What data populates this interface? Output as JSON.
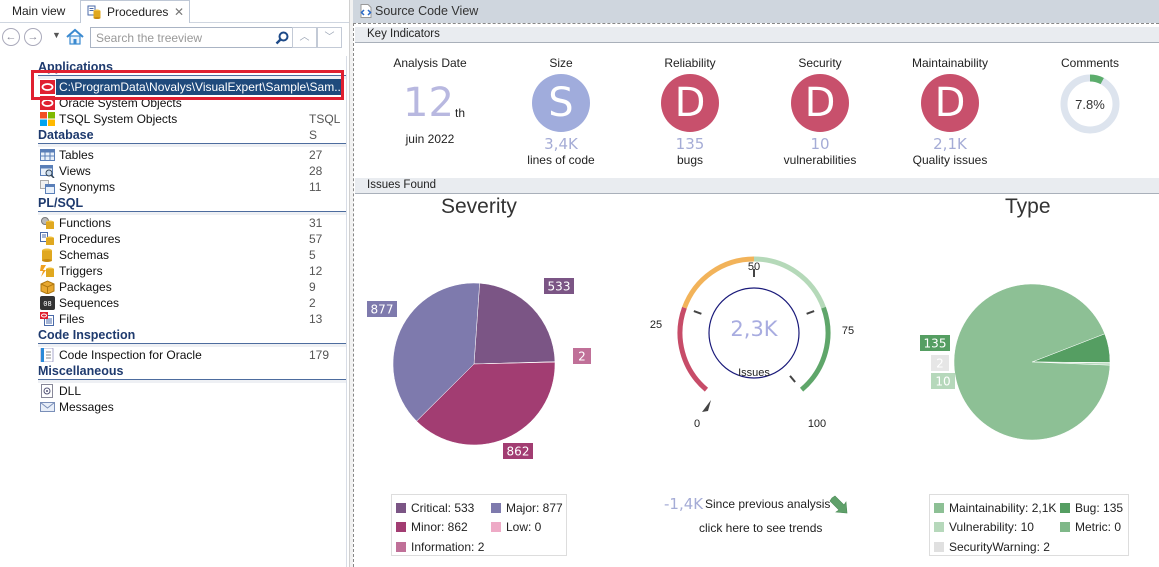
{
  "left_panel": {
    "tabs": [
      {
        "label": "Main view"
      },
      {
        "label": "Procedures",
        "close": "✕"
      }
    ],
    "toolbar": {
      "back": "←",
      "forward": "→",
      "dropdown": "▼",
      "search_placeholder": "Search the treeview",
      "up": "︿",
      "down": "﹀"
    },
    "tree": {
      "sections": [
        {
          "title": "Applications",
          "items": [
            {
              "label": "C:\\ProgramData\\Novalys\\VisualExpert\\Sample\\Sam...",
              "count": "",
              "icon": "oracle-icon",
              "selected": true
            },
            {
              "label": "Oracle System Objects",
              "count": "",
              "icon": "oracle-icon"
            },
            {
              "label": "TSQL System Objects",
              "count": "TSQL S",
              "icon": "windows-icon"
            }
          ]
        },
        {
          "title": "Database",
          "items": [
            {
              "label": "Tables",
              "count": "27",
              "icon": "table-icon"
            },
            {
              "label": "Views",
              "count": "28",
              "icon": "view-icon"
            },
            {
              "label": "Synonyms",
              "count": "11",
              "icon": "synonym-icon"
            }
          ]
        },
        {
          "title": "PL/SQL",
          "items": [
            {
              "label": "Functions",
              "count": "31",
              "icon": "function-icon"
            },
            {
              "label": "Procedures",
              "count": "57",
              "icon": "procedure-icon"
            },
            {
              "label": "Schemas",
              "count": "5",
              "icon": "schema-icon"
            },
            {
              "label": "Triggers",
              "count": "12",
              "icon": "trigger-icon"
            },
            {
              "label": "Packages",
              "count": "9",
              "icon": "package-icon"
            },
            {
              "label": "Sequences",
              "count": "2",
              "icon": "sequence-icon"
            },
            {
              "label": "Files",
              "count": "13",
              "icon": "file-icon"
            }
          ]
        },
        {
          "title": "Code Inspection",
          "items": [
            {
              "label": "Code Inspection for Oracle",
              "count": "179",
              "icon": "code-inspection-icon"
            }
          ]
        },
        {
          "title": "Miscellaneous",
          "items": [
            {
              "label": "DLL",
              "count": "",
              "icon": "dll-icon"
            },
            {
              "label": "Messages",
              "count": "",
              "icon": "message-icon"
            }
          ]
        }
      ]
    }
  },
  "right_panel": {
    "title": "Source Code View",
    "key_indicators": {
      "header": "Key Indicators",
      "analysis_date": {
        "title": "Analysis Date",
        "day": "12",
        "suffix": "th",
        "month_year": "juin 2022"
      },
      "size": {
        "title": "Size",
        "grade": "S",
        "value": "3,4K",
        "unit": "lines of code",
        "color": "#a0acdc"
      },
      "reliability": {
        "title": "Reliability",
        "grade": "D",
        "value": "135",
        "unit": "bugs",
        "color": "#c8506c"
      },
      "security": {
        "title": "Security",
        "grade": "D",
        "value": "10",
        "unit": "vulnerabilities",
        "color": "#c8506c"
      },
      "maintainability": {
        "title": "Maintainability",
        "grade": "D",
        "value": "2,1K",
        "unit": "Quality issues",
        "color": "#c8506c"
      },
      "comments": {
        "title": "Comments",
        "value": "7.8%",
        "percent": 7.8
      }
    },
    "issues": {
      "header": "Issues Found",
      "gauge": {
        "value": "2,3K",
        "label": "Issues",
        "ticks": [
          "0",
          "25",
          "50",
          "75",
          "100"
        ],
        "pointer_percent": 0
      },
      "trend": {
        "value": "-1,4K",
        "text": "Since previous analysis",
        "link": "click here to see trends"
      }
    }
  },
  "chart_data": [
    {
      "type": "pie",
      "title": "Severity",
      "categories": [
        "Critical",
        "Major",
        "Minor",
        "Low",
        "Information"
      ],
      "values": [
        533,
        877,
        862,
        0,
        2
      ],
      "slice_labels": [
        "533",
        "877",
        "862",
        "",
        "2"
      ],
      "colors": [
        "#7b5585",
        "#7e7aad",
        "#a23d72",
        "#eeaac6",
        "#c07098"
      ],
      "legend_labels": [
        "Critical:  533",
        "Major:  877",
        "Minor:  862",
        "Low:  0",
        "Information:  2"
      ],
      "legend": "bottom"
    },
    {
      "type": "pie",
      "title": "Type",
      "categories": [
        "Maintainability",
        "Bug",
        "Vulnerability",
        "Metric",
        "SecurityWarning"
      ],
      "values": [
        2100,
        135,
        10,
        0,
        2
      ],
      "slice_labels": [
        "2,1K",
        "135",
        "10",
        "",
        "2"
      ],
      "colors": [
        "#8dc095",
        "#559e62",
        "#b6d8bb",
        "#7fb889",
        "#e0e0e0"
      ],
      "legend_labels": [
        "Maintainability:  2,1K",
        "Bug:  135",
        "Vulnerability:  10",
        "Metric:  0",
        "SecurityWarning:  2"
      ],
      "legend": "bottom"
    }
  ]
}
